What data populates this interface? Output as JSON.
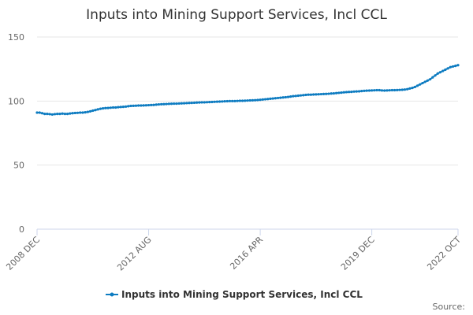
{
  "chart_data": {
    "type": "line",
    "title": "Inputs into Mining Support Services, Incl CCL",
    "source": "Source:",
    "categories": [
      "2008 DEC",
      null,
      null,
      null,
      null,
      null,
      null,
      null,
      null,
      null,
      null,
      null,
      null,
      null,
      null,
      null,
      null,
      null,
      null,
      null,
      null,
      null,
      null,
      null,
      null,
      null,
      null,
      null,
      null,
      null,
      null,
      null,
      null,
      null,
      null,
      null,
      null,
      null,
      null,
      null,
      null,
      null,
      null,
      null,
      "2012 AUG",
      null,
      null,
      null,
      null,
      null,
      null,
      null,
      null,
      null,
      null,
      null,
      null,
      null,
      null,
      null,
      null,
      null,
      null,
      null,
      null,
      null,
      null,
      null,
      null,
      null,
      null,
      null,
      null,
      null,
      null,
      null,
      null,
      null,
      null,
      null,
      null,
      null,
      null,
      null,
      null,
      null,
      null,
      null,
      "2016 APR",
      null,
      null,
      null,
      null,
      null,
      null,
      null,
      null,
      null,
      null,
      null,
      null,
      null,
      null,
      null,
      null,
      null,
      null,
      null,
      null,
      null,
      null,
      null,
      null,
      null,
      null,
      null,
      null,
      null,
      null,
      null,
      null,
      null,
      null,
      null,
      null,
      null,
      null,
      null,
      null,
      null,
      null,
      null,
      "2019 DEC",
      null,
      null,
      null,
      null,
      null,
      null,
      null,
      null,
      null,
      null,
      null,
      null,
      null,
      null,
      null,
      null,
      null,
      null,
      null,
      null,
      null,
      null,
      null,
      null,
      null,
      null,
      null,
      null,
      null,
      null,
      null,
      null,
      null,
      "2022 OCT"
    ],
    "series": [
      {
        "name": "Inputs into Mining Support Services, Incl CCL",
        "color": "#0e7cc1",
        "values": [
          91,
          91,
          90.5,
          90,
          90,
          89.8,
          89.5,
          89.8,
          90,
          90,
          90.2,
          90,
          90,
          90.3,
          90.5,
          90.7,
          90.8,
          91,
          91,
          91.2,
          91.5,
          92,
          92.5,
          93,
          93.5,
          94,
          94.3,
          94.5,
          94.6,
          94.8,
          95,
          95,
          95.2,
          95.4,
          95.5,
          95.7,
          96,
          96.2,
          96.3,
          96.4,
          96.5,
          96.5,
          96.6,
          96.7,
          96.8,
          96.9,
          97,
          97.2,
          97.4,
          97.5,
          97.6,
          97.7,
          97.8,
          97.9,
          98,
          98,
          98.1,
          98.2,
          98.3,
          98.4,
          98.5,
          98.6,
          98.7,
          98.8,
          98.9,
          99,
          99,
          99.1,
          99.2,
          99.3,
          99.4,
          99.5,
          99.6,
          99.7,
          99.8,
          99.9,
          100,
          100,
          100,
          100.1,
          100.2,
          100.2,
          100.3,
          100.4,
          100.5,
          100.6,
          100.7,
          100.8,
          101,
          101.2,
          101.4,
          101.6,
          101.8,
          102,
          102.2,
          102.4,
          102.6,
          102.8,
          103,
          103.2,
          103.5,
          103.8,
          104,
          104.2,
          104.4,
          104.6,
          104.8,
          105,
          105,
          105.1,
          105.2,
          105.3,
          105.4,
          105.5,
          105.6,
          105.7,
          105.9,
          106,
          106.2,
          106.4,
          106.6,
          106.8,
          107,
          107.1,
          107.2,
          107.4,
          107.5,
          107.6,
          107.8,
          108,
          108.1,
          108.2,
          108.3,
          108.4,
          108.5,
          108.5,
          108.3,
          108.2,
          108.3,
          108.4,
          108.5,
          108.5,
          108.6,
          108.7,
          108.8,
          109,
          109.3,
          109.8,
          110.3,
          111,
          112,
          113,
          114,
          115,
          116,
          117,
          118.5,
          120,
          121.5,
          122.5,
          123.5,
          124.5,
          125.5,
          126.5,
          127,
          127.5,
          128
        ]
      }
    ],
    "ylim": [
      0,
      150
    ],
    "yticks": [
      0,
      50,
      100,
      150
    ],
    "grid": true
  }
}
